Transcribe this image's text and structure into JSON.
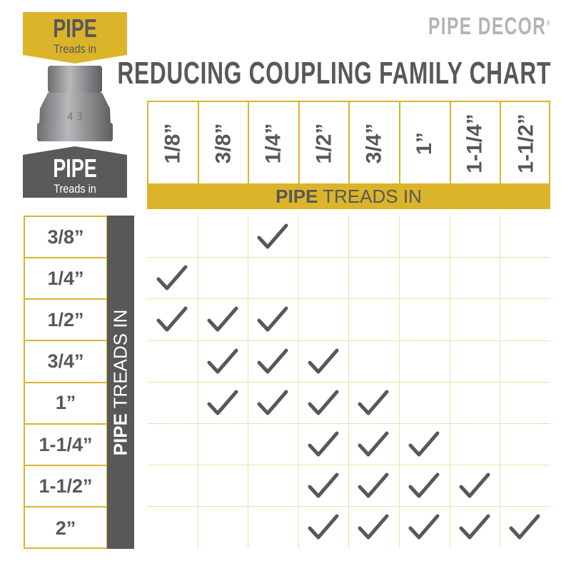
{
  "brand": {
    "logo": "PIPE DECOR",
    "registered": "®"
  },
  "title": "REDUCING COUPLING FAMILY CHART",
  "top_banner": {
    "big": "PIPE",
    "small": "Treads in",
    "color": "#dcb42a"
  },
  "bottom_banner": {
    "big": "PIPE",
    "small": "Treads in",
    "color": "#5a5a5c"
  },
  "columns": {
    "labels": [
      "1/8”",
      "3/8”",
      "1/4”",
      "1/2”",
      "3/4”",
      "1”",
      "1-1/4”",
      "1-1/2”"
    ],
    "band_bold": "PIPE",
    "band_rest": " TREADS IN"
  },
  "rows": {
    "labels": [
      "3/8”",
      "1/4”",
      "1/2”",
      "3/4”",
      "1”",
      "1-1/4”",
      "1-1/2”",
      "2”"
    ],
    "band_bold": "PIPE",
    "band_rest": " TREADS IN"
  },
  "compatibility": [
    [
      2
    ],
    [
      0
    ],
    [
      0,
      1,
      2
    ],
    [
      1,
      2,
      3
    ],
    [
      1,
      2,
      3,
      4
    ],
    [
      3,
      4,
      5
    ],
    [
      3,
      4,
      5,
      6
    ],
    [
      3,
      4,
      5,
      6,
      7
    ]
  ],
  "colors": {
    "accent": "#dcb42a",
    "text": "#58585a",
    "check": "#58585a"
  }
}
